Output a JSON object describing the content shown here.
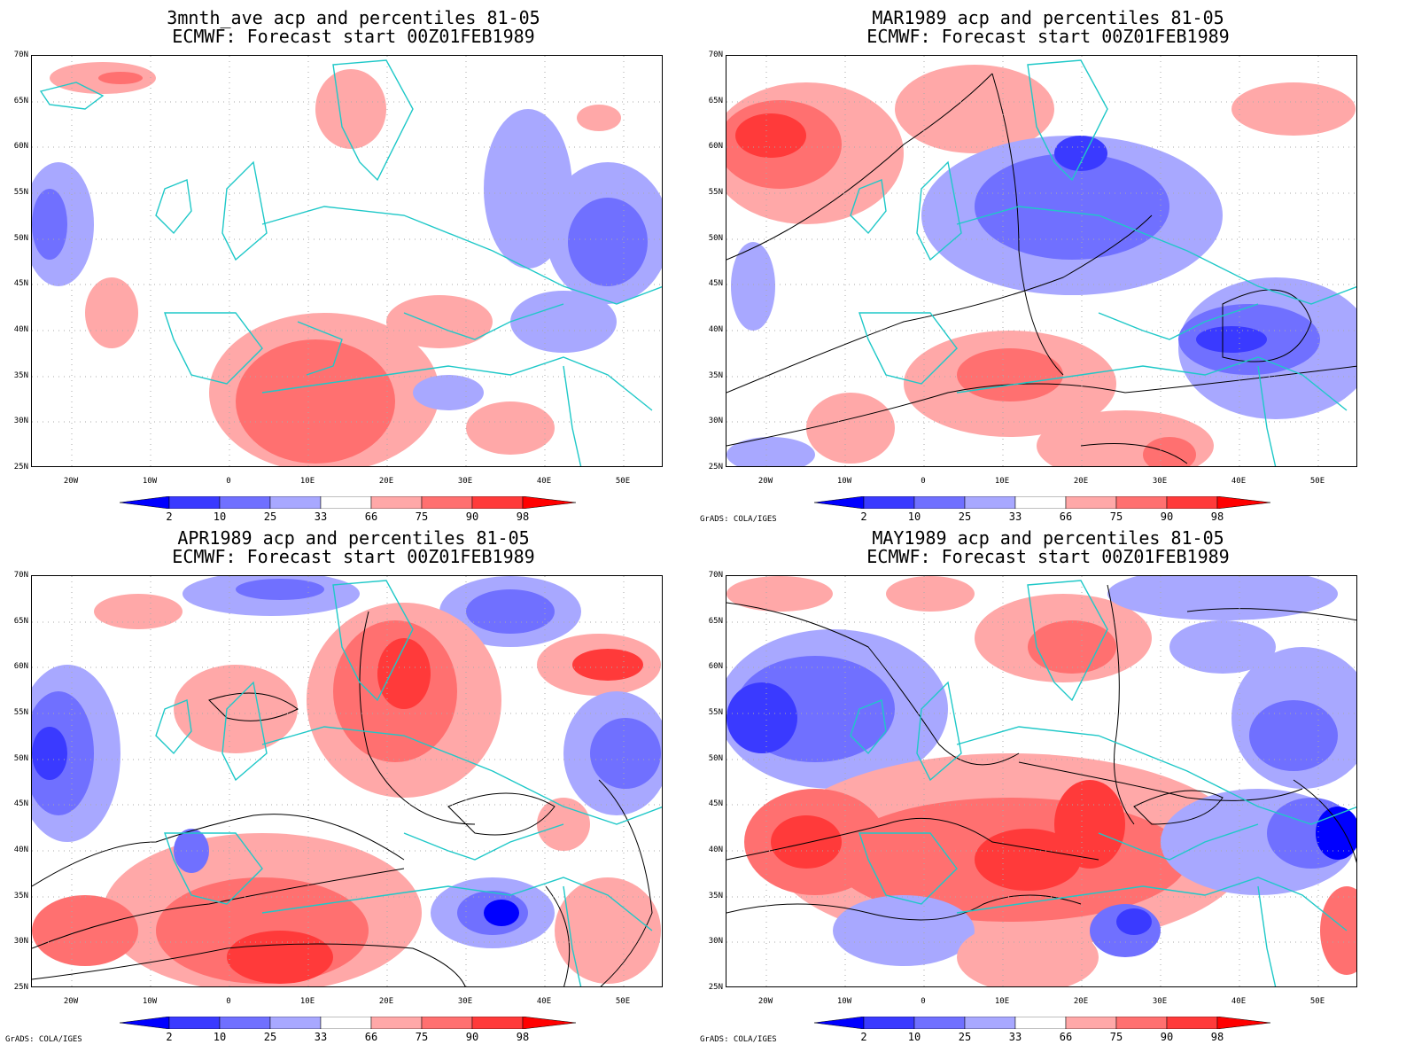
{
  "panels": [
    {
      "title_line1": "3mnth_ave acp and percentiles 81-05",
      "title_line2": "ECMWF: Forecast start 00Z01FEB1989",
      "credit": ""
    },
    {
      "title_line1": "MAR1989 acp and percentiles 81-05",
      "title_line2": "ECMWF: Forecast start 00Z01FEB1989",
      "credit": "GrADS: COLA/IGES"
    },
    {
      "title_line1": "APR1989 acp and percentiles 81-05",
      "title_line2": "ECMWF: Forecast start 00Z01FEB1989",
      "credit": "GrADS: COLA/IGES"
    },
    {
      "title_line1": "MAY1989 acp and percentiles 81-05",
      "title_line2": "ECMWF: Forecast start 00Z01FEB1989",
      "credit": "GrADS: COLA/IGES"
    }
  ],
  "lat_labels": [
    "70N",
    "65N",
    "60N",
    "55N",
    "50N",
    "45N",
    "40N",
    "35N",
    "30N",
    "25N"
  ],
  "lon_labels": [
    "20W",
    "10W",
    "0",
    "10E",
    "20E",
    "30E",
    "40E",
    "50E"
  ],
  "colorbar": {
    "labels": [
      "2",
      "10",
      "25",
      "33",
      "66",
      "75",
      "90",
      "98"
    ],
    "colors": [
      "#0000ff",
      "#3a3aff",
      "#7070ff",
      "#a8a8ff",
      "#ffffff",
      "#ffa8a8",
      "#ff7070",
      "#ff3a3a",
      "#ff0000"
    ]
  },
  "coast_color": "#1fc8c8",
  "contour_color": "#000000"
}
